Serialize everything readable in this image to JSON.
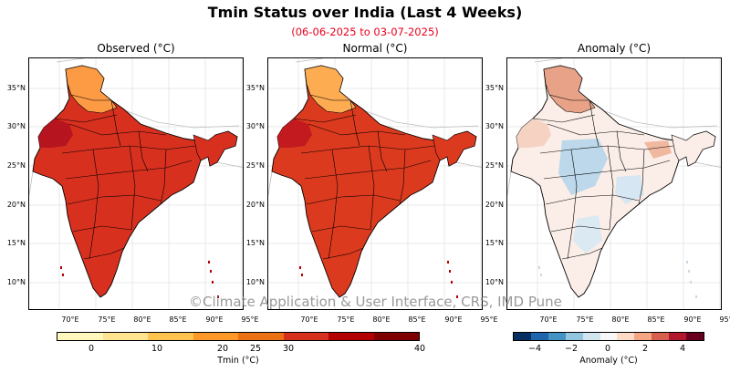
{
  "header": {
    "title": "Tmin Status over India (Last 4 Weeks)",
    "subtitle": "(06-06-2025 to 03-07-2025)"
  },
  "panels": [
    {
      "title": "Observed (°C)",
      "fill": "#d8301f",
      "north_fill": "#fd9a44",
      "nw_fill": "#b6141f"
    },
    {
      "title": "Normal (°C)",
      "fill": "#dc3a1e",
      "north_fill": "#fdac52",
      "nw_fill": "#c21a1e"
    },
    {
      "title": "Anomaly (°C)",
      "fill": "#fbeee8",
      "north_fill": "#e7a288",
      "nw_fill": "#f6d2c3"
    }
  ],
  "axes": {
    "lat_labels": [
      "35°N",
      "30°N",
      "25°N",
      "20°N",
      "15°N",
      "10°N"
    ],
    "lon_labels": [
      "70°E",
      "75°E",
      "80°E",
      "85°E",
      "90°E",
      "95°E"
    ]
  },
  "watermark": "©Climate Application & User Interface, CRS, IMD Pune",
  "colorbar_tmin": {
    "label": "Tmin (°C)",
    "ticks": [
      "0",
      "10",
      "20",
      "25",
      "30",
      "40"
    ],
    "colors": [
      "#fff7bc",
      "#fee391",
      "#fec44f",
      "#fe9929",
      "#ec7014",
      "#d7301f",
      "#b30000",
      "#7f0000"
    ]
  },
  "colorbar_anomaly": {
    "label": "Anomaly (°C)",
    "ticks": [
      "−4",
      "−2",
      "0",
      "2",
      "4"
    ],
    "colors": [
      "#053061",
      "#2166ac",
      "#4393c3",
      "#92c5de",
      "#d1e5f0",
      "#f7f7f7",
      "#fddbc7",
      "#f4a582",
      "#d6604d",
      "#b2182b",
      "#67001f"
    ]
  }
}
